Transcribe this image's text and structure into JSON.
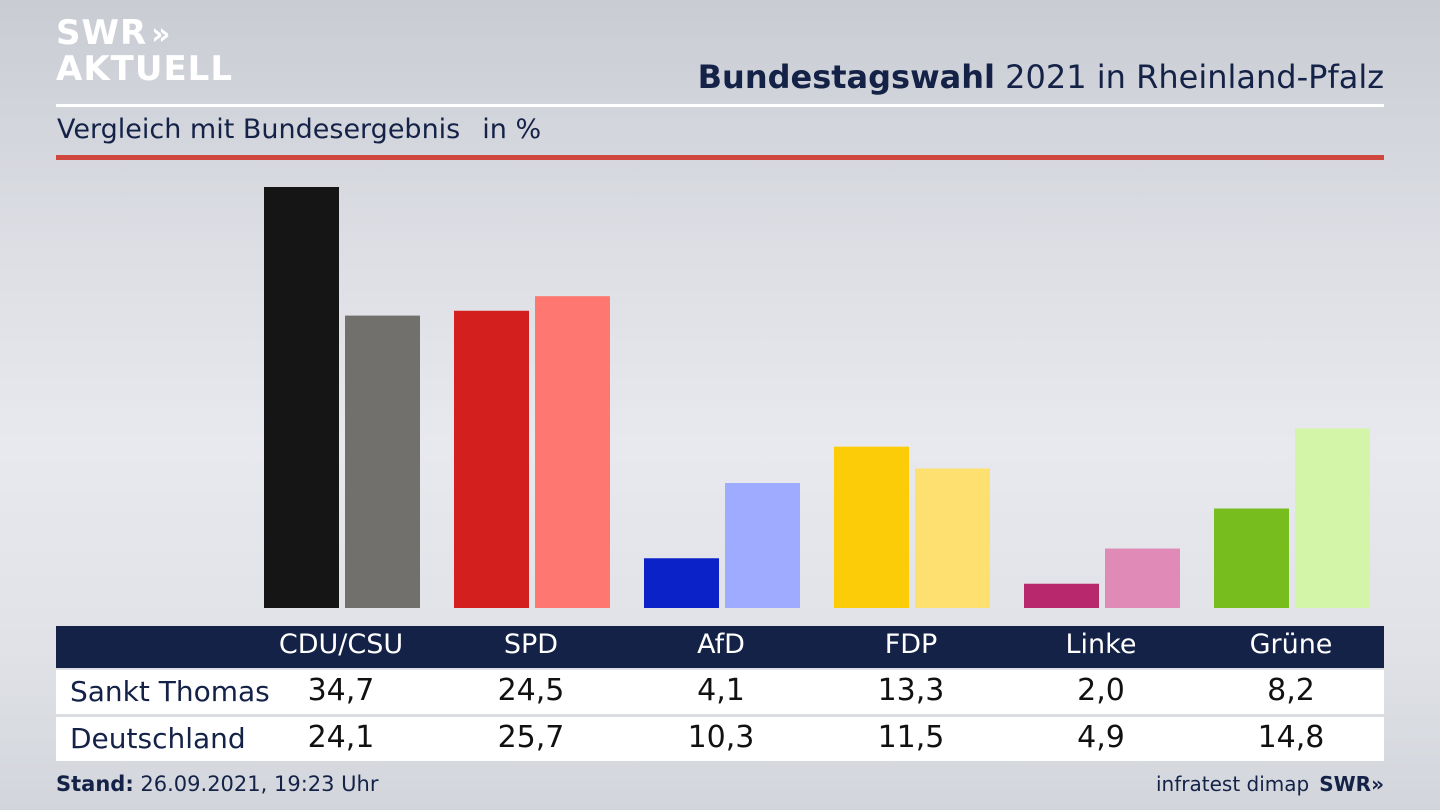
{
  "brand": {
    "logo_line1": "SWR",
    "logo_chevrons": "»",
    "logo_line2": "AKTUELL"
  },
  "header": {
    "title_bold": "Bundestagswahl",
    "title_rest": " 2021 in Rheinland-Pfalz",
    "subtitle": "Vergleich mit Bundesergebnis",
    "unit": "in %"
  },
  "chart_data": {
    "type": "bar",
    "title": "Bundestagswahl 2021 in Rheinland-Pfalz",
    "subtitle": "Vergleich mit Bundesergebnis",
    "unit": "in %",
    "categories": [
      "CDU/CSU",
      "SPD",
      "AfD",
      "FDP",
      "Linke",
      "Grüne"
    ],
    "series": [
      {
        "name": "Sankt Thomas",
        "values": [
          34.7,
          24.5,
          4.1,
          13.3,
          2.0,
          8.2
        ],
        "colors": [
          "#151515",
          "#d41f1f",
          "#0a22c8",
          "#fdcc09",
          "#b8286c",
          "#78bd1e"
        ]
      },
      {
        "name": "Deutschland",
        "values": [
          24.1,
          25.7,
          10.3,
          11.5,
          4.9,
          14.8
        ],
        "colors": [
          "#71706d",
          "#fe7770",
          "#9eabfe",
          "#fde06f",
          "#e08ab8",
          "#d3f5a8"
        ]
      }
    ],
    "value_labels": {
      "Sankt Thomas": [
        "34,7",
        "24,5",
        "4,1",
        "13,3",
        "2,0",
        "8,2"
      ],
      "Deutschland": [
        "24,1",
        "25,7",
        "10,3",
        "11,5",
        "4,9",
        "14,8"
      ]
    },
    "ylim": [
      0,
      35
    ],
    "grid": false,
    "legend": "table-below"
  },
  "footer": {
    "stand_label": "Stand:",
    "stand_value": " 26.09.2021, 19:23 Uhr",
    "source": "infratest dimap",
    "source_brand": "SWR»"
  }
}
